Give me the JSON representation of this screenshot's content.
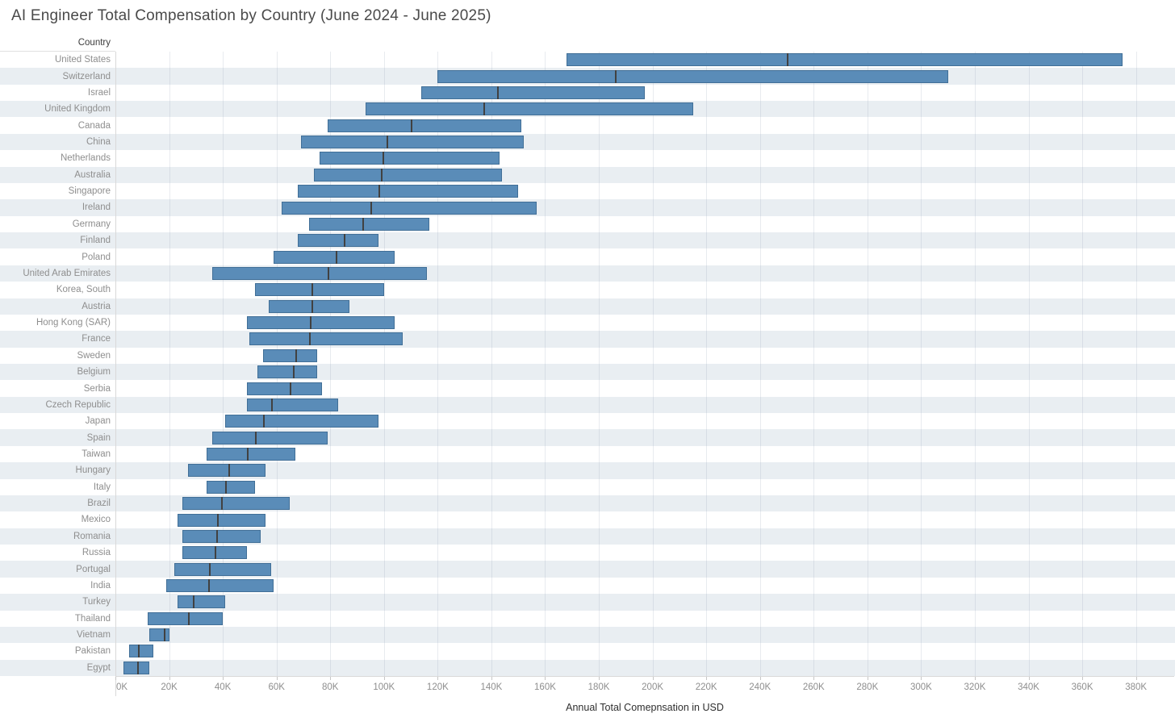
{
  "chart_data": {
    "type": "bar",
    "variant": "horizontal-range-bars-with-median-marker",
    "title": "AI Engineer Total Compensation by Country (June 2024 - June 2025)",
    "column_header": "Country",
    "xlabel": "Annual Total Comepnsation in USD",
    "unit": "thousand USD",
    "xlim": [
      0,
      394
    ],
    "grid": "vertical",
    "legend": "none",
    "x_tick_values": [
      0,
      20,
      40,
      60,
      80,
      100,
      120,
      140,
      160,
      180,
      200,
      220,
      240,
      260,
      280,
      300,
      320,
      340,
      360,
      380
    ],
    "x_ticks": [
      "0K",
      "20K",
      "40K",
      "60K",
      "80K",
      "100K",
      "120K",
      "140K",
      "160K",
      "180K",
      "200K",
      "220K",
      "240K",
      "260K",
      "280K",
      "300K",
      "320K",
      "340K",
      "360K",
      "380K"
    ],
    "series": [
      {
        "country": "United States",
        "min": 168,
        "median": 250,
        "max": 375
      },
      {
        "country": "Switzerland",
        "min": 120,
        "median": 186,
        "max": 310
      },
      {
        "country": "Israel",
        "min": 114,
        "median": 142,
        "max": 197
      },
      {
        "country": "United Kingdom",
        "min": 93,
        "median": 137,
        "max": 215
      },
      {
        "country": "Canada",
        "min": 79,
        "median": 110,
        "max": 151
      },
      {
        "country": "China",
        "min": 69,
        "median": 101,
        "max": 152
      },
      {
        "country": "Netherlands",
        "min": 76,
        "median": 99.5,
        "max": 143
      },
      {
        "country": "Australia",
        "min": 74,
        "median": 99,
        "max": 144
      },
      {
        "country": "Singapore",
        "min": 68,
        "median": 98,
        "max": 150
      },
      {
        "country": "Ireland",
        "min": 62,
        "median": 95,
        "max": 157
      },
      {
        "country": "Germany",
        "min": 72,
        "median": 92,
        "max": 117
      },
      {
        "country": "Finland",
        "min": 68,
        "median": 85,
        "max": 98
      },
      {
        "country": "Poland",
        "min": 59,
        "median": 82,
        "max": 104
      },
      {
        "country": "United Arab Emirates",
        "min": 36,
        "median": 79,
        "max": 116
      },
      {
        "country": "Korea, South",
        "min": 52,
        "median": 73,
        "max": 100
      },
      {
        "country": "Austria",
        "min": 57,
        "median": 73,
        "max": 87
      },
      {
        "country": "Hong Kong (SAR)",
        "min": 49,
        "median": 72.5,
        "max": 104
      },
      {
        "country": "France",
        "min": 50,
        "median": 72,
        "max": 107
      },
      {
        "country": "Sweden",
        "min": 55,
        "median": 67,
        "max": 75
      },
      {
        "country": "Belgium",
        "min": 53,
        "median": 66,
        "max": 75
      },
      {
        "country": "Serbia",
        "min": 49,
        "median": 65,
        "max": 77
      },
      {
        "country": "Czech Republic",
        "min": 49,
        "median": 58,
        "max": 83
      },
      {
        "country": "Japan",
        "min": 41,
        "median": 55,
        "max": 98
      },
      {
        "country": "Spain",
        "min": 36,
        "median": 52,
        "max": 79
      },
      {
        "country": "Taiwan",
        "min": 34,
        "median": 49,
        "max": 67
      },
      {
        "country": "Hungary",
        "min": 27,
        "median": 42,
        "max": 56
      },
      {
        "country": "Italy",
        "min": 34,
        "median": 41,
        "max": 52
      },
      {
        "country": "Brazil",
        "min": 25,
        "median": 39.5,
        "max": 65
      },
      {
        "country": "Mexico",
        "min": 23,
        "median": 38,
        "max": 56
      },
      {
        "country": "Romania",
        "min": 25,
        "median": 37.5,
        "max": 54
      },
      {
        "country": "Russia",
        "min": 25,
        "median": 37,
        "max": 49
      },
      {
        "country": "Portugal",
        "min": 22,
        "median": 35,
        "max": 58
      },
      {
        "country": "India",
        "min": 19,
        "median": 34.5,
        "max": 59
      },
      {
        "country": "Turkey",
        "min": 23,
        "median": 29,
        "max": 41
      },
      {
        "country": "Thailand",
        "min": 12,
        "median": 27,
        "max": 40
      },
      {
        "country": "Vietnam",
        "min": 12.5,
        "median": 18,
        "max": 20
      },
      {
        "country": "Pakistan",
        "min": 5,
        "median": 8.5,
        "max": 14
      },
      {
        "country": "Egypt",
        "min": 3,
        "median": 8,
        "max": 12.5
      }
    ],
    "colors": {
      "bar_fill": "#5a8cb8",
      "bar_border": "#49789f",
      "median_marker": "#414141",
      "row_band": "#e9eef2",
      "gridline": "#e3e8ec",
      "axis_line": "#d9d9d9",
      "tick_text": "#8e8e8e",
      "label_text": "#8e8e8e",
      "title_text": "#4a4a4a"
    }
  }
}
